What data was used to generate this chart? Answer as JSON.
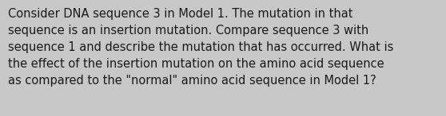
{
  "text": "Consider DNA sequence 3 in Model 1. The mutation in that\nsequence is an insertion mutation. Compare sequence 3 with\nsequence 1 and describe the mutation that has occurred. What is\nthe effect of the insertion mutation on the amino acid sequence\nas compared to the \"normal\" amino acid sequence in Model 1?",
  "background_color": "#c8c8c8",
  "text_color": "#1a1a1a",
  "font_size": 10.5,
  "fig_width": 5.58,
  "fig_height": 1.46,
  "dpi": 100
}
